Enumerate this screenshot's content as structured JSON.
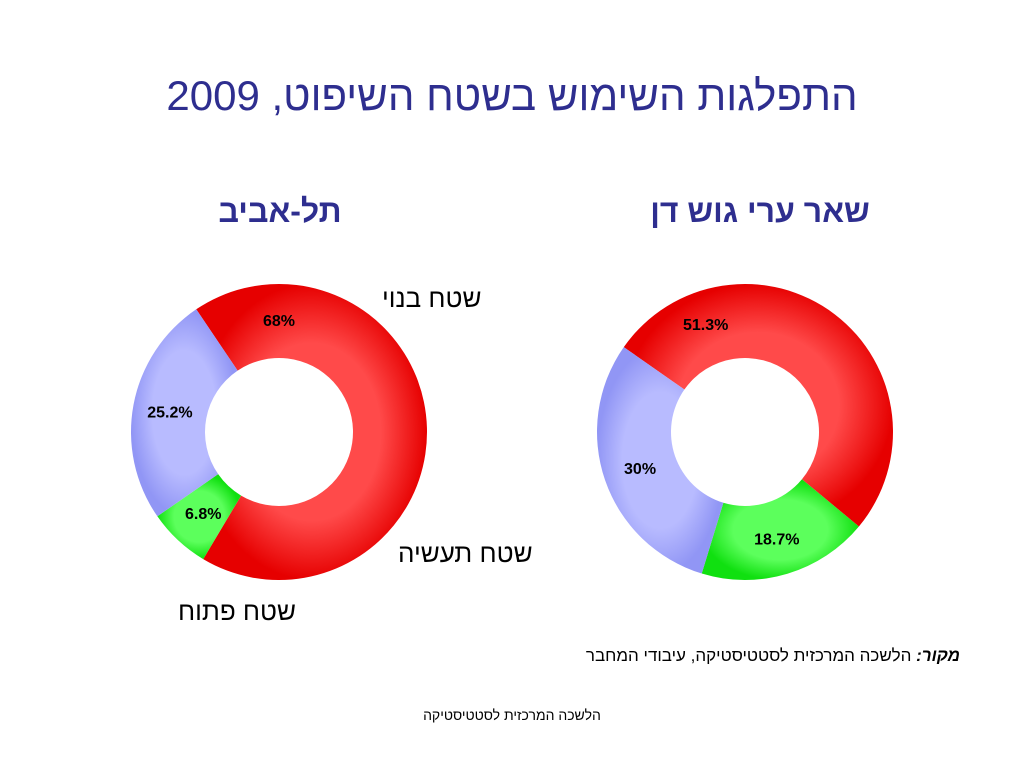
{
  "title": "התפלגות השימוש בשטח השיפוט, 2009",
  "labels": {
    "built": "שטח בנוי",
    "industry": "שטח תעשיה",
    "open": "שטח פתוח"
  },
  "source": {
    "prefix": "מקור:",
    "text": "הלשכה המרכזית לסטטיסטיקה, עיבודי המחבר"
  },
  "footer": "הלשכה המרכזית לסטטיסטיקה",
  "chart_data": [
    {
      "type": "pie",
      "title": "תל-אביב",
      "categories": [
        "שטח בנוי",
        "שטח תעשיה",
        "שטח פתוח"
      ],
      "values": [
        68,
        6.8,
        25.2
      ],
      "value_labels": [
        "68%",
        "6.8%",
        "25.2%"
      ],
      "colors": [
        "#ff2020",
        "#22ee22",
        "#a8acff"
      ],
      "donut": true
    },
    {
      "type": "pie",
      "title": "שאר ערי גוש דן",
      "categories": [
        "שטח בנוי",
        "שטח תעשיה",
        "שטח פתוח"
      ],
      "values": [
        51.3,
        18.7,
        30
      ],
      "value_labels": [
        "51.3%",
        "18.7%",
        "30%"
      ],
      "colors": [
        "#ff2020",
        "#22ee22",
        "#a8acff"
      ],
      "donut": true
    }
  ]
}
